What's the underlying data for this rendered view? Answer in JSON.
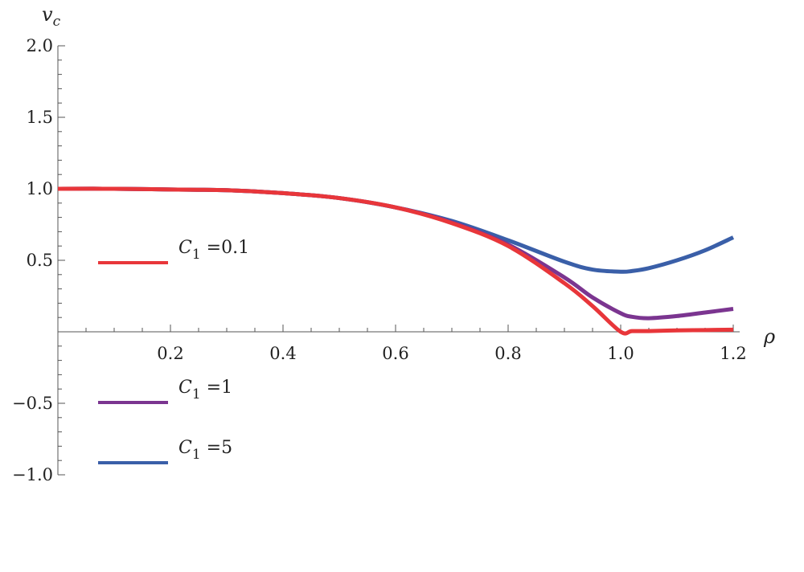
{
  "chart_data": {
    "type": "line",
    "title": "",
    "xlabel": "ρ",
    "ylabel": "v",
    "ylabel_sub": "c",
    "xlim": [
      0,
      1.2
    ],
    "ylim": [
      -1.0,
      2.0
    ],
    "x_ticks": [
      0.2,
      0.4,
      0.6,
      0.8,
      1.0,
      1.2
    ],
    "x_tick_labels": [
      "0.2",
      "0.4",
      "0.6",
      "0.8",
      "1.0",
      "1.2"
    ],
    "y_ticks": [
      -1.0,
      -0.5,
      0.5,
      1.0,
      1.5,
      2.0
    ],
    "y_tick_labels": [
      "−1.0",
      "−0.5",
      "0.5",
      "1.0",
      "1.5",
      "2.0"
    ],
    "grid": false,
    "legend_placement": "left",
    "x": [
      0.0,
      0.1,
      0.2,
      0.3,
      0.4,
      0.5,
      0.6,
      0.7,
      0.8,
      0.9,
      0.95,
      1.0,
      1.02,
      1.05,
      1.1,
      1.15,
      1.2
    ],
    "series": [
      {
        "name": "C1 =0.1",
        "legend_sym": "C",
        "legend_sub": "1",
        "legend_val": " =0.1",
        "color": "#e8363a",
        "values": [
          1.0,
          1.0,
          0.995,
          0.99,
          0.97,
          0.935,
          0.87,
          0.76,
          0.6,
          0.34,
          0.18,
          0.0,
          0.005,
          0.005,
          0.01,
          0.012,
          0.015
        ]
      },
      {
        "name": "C1 =1",
        "legend_sym": "C",
        "legend_sub": "1",
        "legend_val": " =1",
        "color": "#7b3590",
        "values": [
          1.0,
          1.0,
          0.995,
          0.99,
          0.97,
          0.935,
          0.87,
          0.765,
          0.61,
          0.38,
          0.24,
          0.13,
          0.105,
          0.095,
          0.11,
          0.135,
          0.16
        ]
      },
      {
        "name": "C1 =5",
        "legend_sym": "C",
        "legend_sub": "1",
        "legend_val": " =5",
        "color": "#3a5fa8",
        "values": [
          1.0,
          1.0,
          0.995,
          0.99,
          0.97,
          0.935,
          0.87,
          0.775,
          0.64,
          0.49,
          0.435,
          0.42,
          0.425,
          0.445,
          0.5,
          0.57,
          0.66
        ]
      }
    ]
  }
}
